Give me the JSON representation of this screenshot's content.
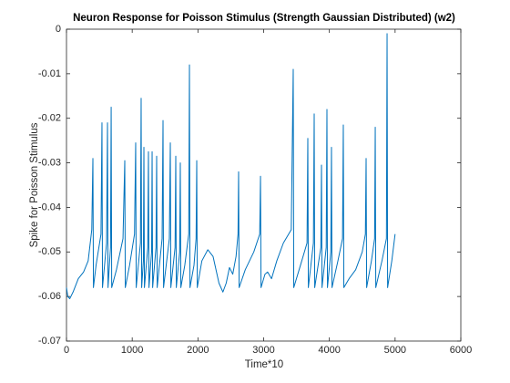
{
  "chart_data": {
    "type": "line",
    "title": "Neuron Response for Poisson Stimulus (Strength Gaussian Distributed) (w2)",
    "x_label": "Time*10",
    "y_label": "Spike for Poisson Stimulus",
    "xlim": [
      0,
      6000
    ],
    "ylim": [
      -0.07,
      0
    ],
    "xticks": [
      0,
      1000,
      2000,
      3000,
      4000,
      5000,
      6000
    ],
    "yticks": [
      -0.07,
      -0.06,
      -0.05,
      -0.04,
      -0.03,
      -0.02,
      -0.01,
      0
    ],
    "grid": false,
    "series": [
      {
        "color": "#0072bd",
        "x": [
          0,
          20,
          50,
          100,
          180,
          260,
          330,
          385,
          402,
          410,
          450,
          525,
          540,
          548,
          610,
          624,
          632,
          670,
          680,
          688,
          760,
          860,
          887,
          895,
          960,
          1035,
          1053,
          1061,
          1125,
          1136,
          1144,
          1170,
          1178,
          1186,
          1237,
          1247,
          1255,
          1295,
          1303,
          1311,
          1362,
          1372,
          1380,
          1455,
          1469,
          1477,
          1565,
          1580,
          1588,
          1652,
          1663,
          1671,
          1722,
          1732,
          1740,
          1800,
          1860,
          1871,
          1879,
          1940,
          1972,
          1982,
          1990,
          2060,
          2150,
          2230,
          2320,
          2380,
          2430,
          2480,
          2530,
          2580,
          2610,
          2619,
          2627,
          2720,
          2850,
          2940,
          2952,
          2960,
          3020,
          3060,
          3120,
          3200,
          3300,
          3420,
          3450,
          3458,
          3560,
          3660,
          3672,
          3680,
          3757,
          3769,
          3777,
          3870,
          3880,
          3888,
          3952,
          3963,
          3971,
          4022,
          4032,
          4040,
          4130,
          4200,
          4212,
          4220,
          4300,
          4400,
          4500,
          4548,
          4559,
          4567,
          4640,
          4688,
          4698,
          4706,
          4800,
          4868,
          4878,
          4886,
          4950,
          5000
        ],
        "values": [
          -0.058,
          -0.06,
          -0.0605,
          -0.059,
          -0.056,
          -0.0545,
          -0.052,
          -0.045,
          -0.029,
          -0.058,
          -0.053,
          -0.046,
          -0.021,
          -0.058,
          -0.048,
          -0.021,
          -0.058,
          -0.049,
          -0.0175,
          -0.058,
          -0.054,
          -0.047,
          -0.0295,
          -0.058,
          -0.053,
          -0.046,
          -0.0255,
          -0.058,
          -0.048,
          -0.0155,
          -0.058,
          -0.052,
          -0.0265,
          -0.058,
          -0.049,
          -0.0275,
          -0.058,
          -0.05,
          -0.0275,
          -0.058,
          -0.049,
          -0.0285,
          -0.058,
          -0.047,
          -0.0205,
          -0.058,
          -0.047,
          -0.0255,
          -0.058,
          -0.049,
          -0.0285,
          -0.058,
          -0.05,
          -0.03,
          -0.058,
          -0.053,
          -0.046,
          -0.008,
          -0.058,
          -0.053,
          -0.047,
          -0.0295,
          -0.058,
          -0.052,
          -0.0495,
          -0.051,
          -0.057,
          -0.059,
          -0.057,
          -0.0535,
          -0.055,
          -0.051,
          -0.046,
          -0.032,
          -0.058,
          -0.054,
          -0.05,
          -0.046,
          -0.033,
          -0.058,
          -0.055,
          -0.0545,
          -0.056,
          -0.052,
          -0.048,
          -0.045,
          -0.009,
          -0.058,
          -0.053,
          -0.048,
          -0.0245,
          -0.058,
          -0.048,
          -0.019,
          -0.058,
          -0.049,
          -0.0305,
          -0.058,
          -0.049,
          -0.018,
          -0.058,
          -0.05,
          -0.0265,
          -0.058,
          -0.052,
          -0.047,
          -0.0215,
          -0.058,
          -0.056,
          -0.054,
          -0.05,
          -0.046,
          -0.029,
          -0.058,
          -0.052,
          -0.047,
          -0.022,
          -0.058,
          -0.052,
          -0.047,
          -0.001,
          -0.058,
          -0.052,
          -0.046
        ]
      }
    ]
  }
}
